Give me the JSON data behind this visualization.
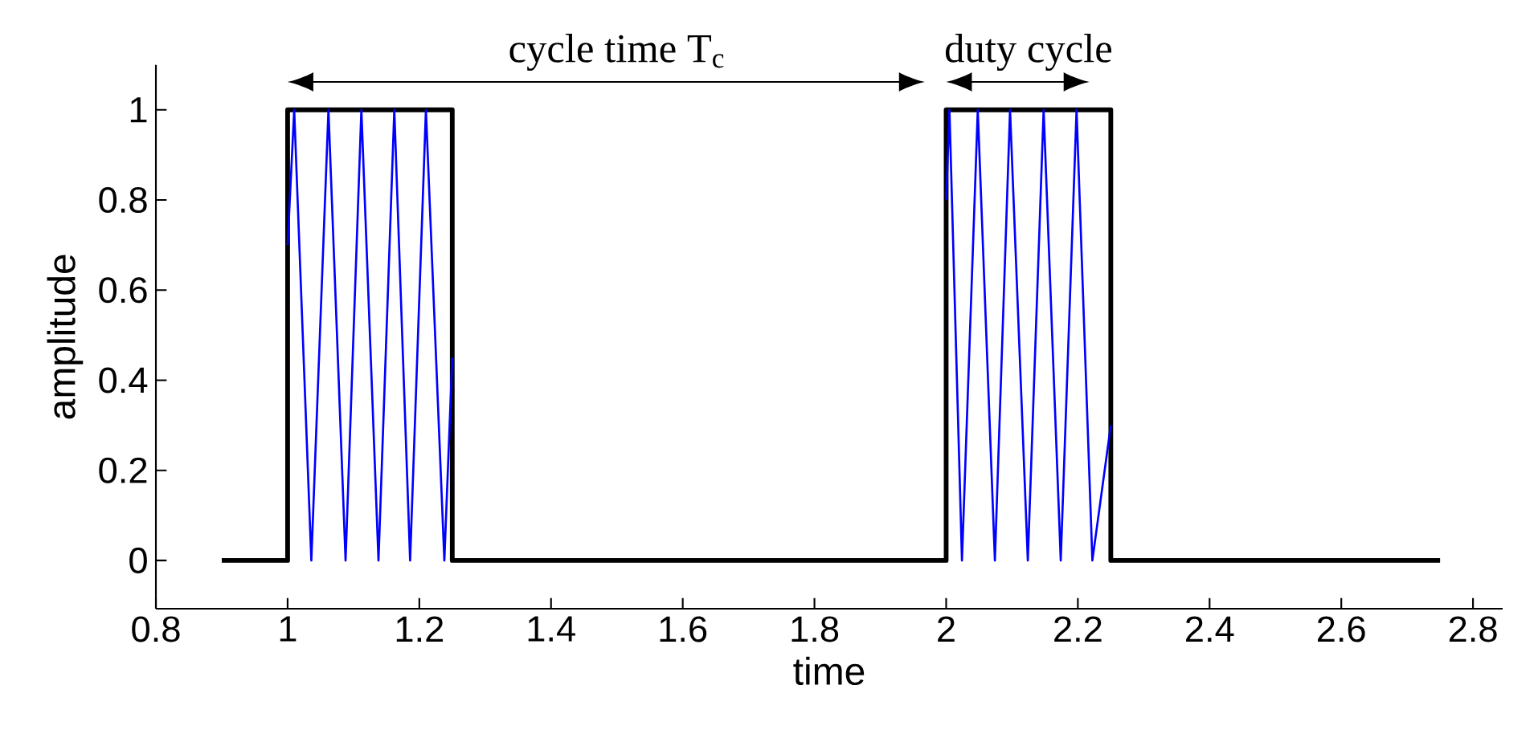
{
  "chart_data": {
    "type": "line",
    "xlabel": "time",
    "ylabel": "amplitude",
    "annotations": [
      "cycle time T$_{c}$",
      "duty cycle"
    ],
    "series": [
      {
        "color": "#0000ff",
        "x": [
          1.0,
          1.01,
          1.036,
          1.062,
          1.088,
          1.112,
          1.138,
          1.162,
          1.186,
          1.21,
          1.238,
          1.25,
          1.6,
          2.0,
          2.005,
          2.024,
          2.048,
          2.074,
          2.097,
          2.124,
          2.148,
          2.174,
          2.198,
          2.222,
          2.25
        ],
        "values": [
          0.7,
          1,
          0,
          1,
          0,
          1,
          0,
          1,
          0,
          1,
          0,
          0.45,
          null,
          0.8,
          1,
          0,
          1,
          0,
          1,
          0,
          1,
          0,
          1,
          0,
          0.3
        ]
      },
      {
        "color": "#000000",
        "x": [
          0.9,
          1.0,
          1.0,
          1.25,
          1.25,
          2.0,
          2.0,
          2.25,
          2.25,
          2.75
        ],
        "values": [
          0,
          0,
          1,
          1,
          0,
          0,
          1,
          1,
          0,
          0
        ]
      }
    ],
    "xlim": [
      0.8,
      2.845
    ],
    "ylim": [
      -0.107,
      1.1
    ],
    "xticks": [
      0.8,
      1,
      1.2,
      1.4,
      1.6,
      1.8,
      2,
      2.2,
      2.4,
      2.6,
      2.8
    ],
    "yticks": [
      0,
      0.2,
      0.4,
      0.6,
      0.8,
      1
    ],
    "grid": false,
    "marker": "none",
    "line_style": "solid"
  }
}
